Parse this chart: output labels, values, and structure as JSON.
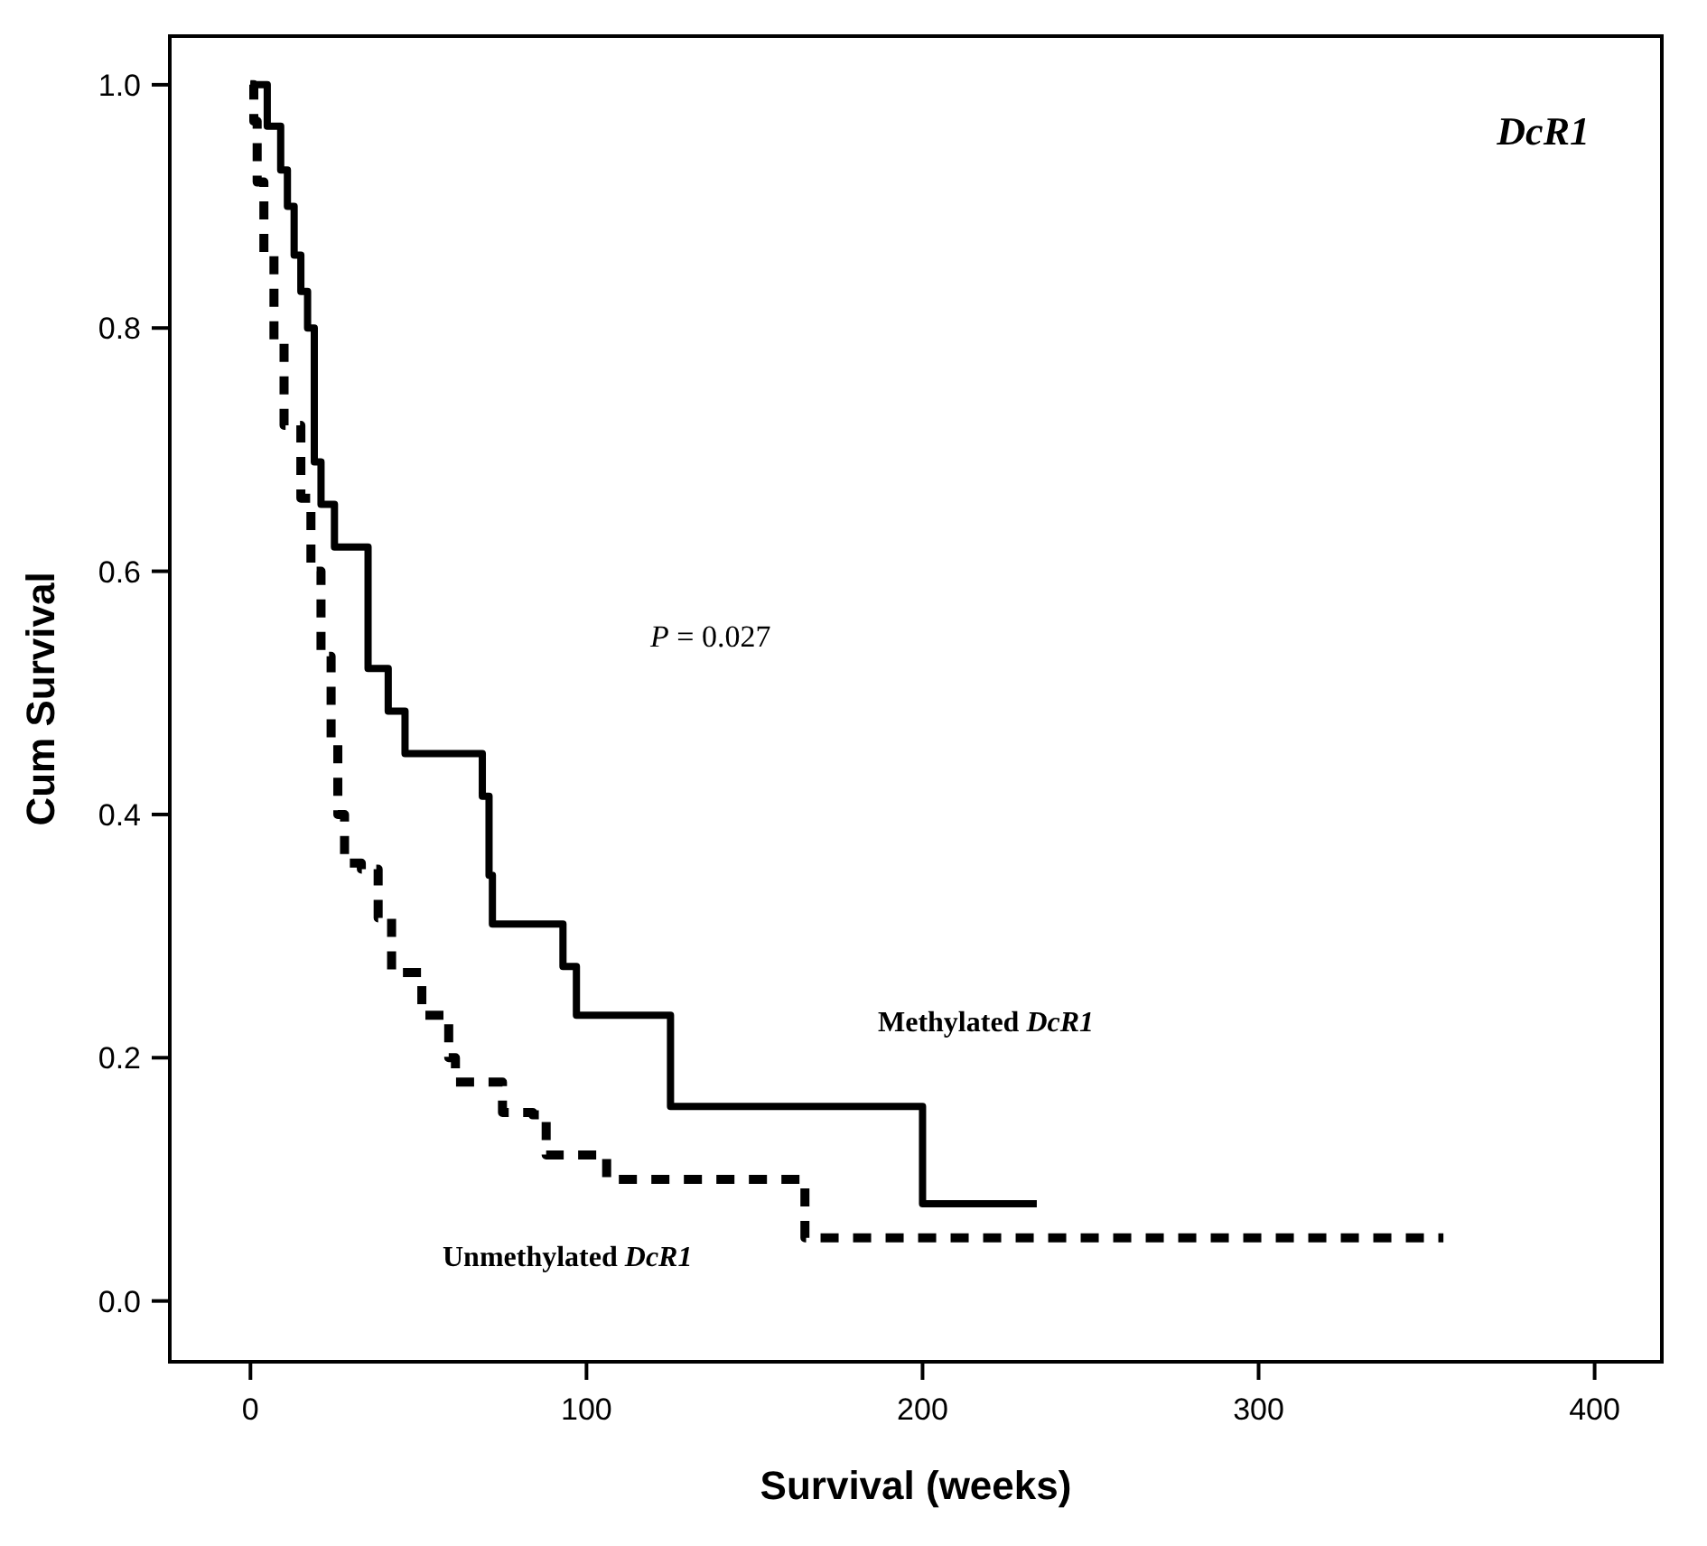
{
  "chart_data": {
    "type": "step",
    "title": "DcR1",
    "xlabel": "Survival (weeks)",
    "ylabel": "Cum Survival",
    "annotations": [
      "P = 0.027"
    ],
    "xlim": [
      -24,
      420
    ],
    "ylim": [
      -0.05,
      1.04
    ],
    "xticks": [
      0,
      100,
      200,
      300,
      400
    ],
    "yticks": [
      {
        "value": 0,
        "label": "0.0"
      },
      {
        "value": 0.2,
        "label": "0.2"
      },
      {
        "value": 0.4,
        "label": "0.4"
      },
      {
        "value": 0.6,
        "label": "0.6"
      },
      {
        "value": 0.8,
        "label": "0.8"
      },
      {
        "value": 1,
        "label": "1.0"
      }
    ],
    "grid": false,
    "series": [
      {
        "name": "Methylated DcR1",
        "color": "#000000",
        "line_style": "solid",
        "x": [
          0,
          5,
          9,
          11,
          13,
          15,
          17,
          19,
          21,
          25,
          35,
          41,
          46,
          69,
          71,
          72,
          93,
          97,
          125,
          200,
          234
        ],
        "values": [
          1,
          0.966,
          0.93,
          0.9,
          0.86,
          0.83,
          0.8,
          0.69,
          0.655,
          0.62,
          0.52,
          0.485,
          0.45,
          0.415,
          0.35,
          0.31,
          0.275,
          0.235,
          0.16,
          0.08,
          0.08
        ]
      },
      {
        "name": "Unmethylated DcR1",
        "color": "#000000",
        "line_style": "dashed",
        "x": [
          0,
          1,
          2,
          4,
          7,
          10,
          15,
          18,
          21,
          24,
          26,
          28,
          33,
          38,
          42,
          51,
          59,
          61,
          71,
          75,
          84,
          88,
          104,
          106,
          165,
          355
        ],
        "values": [
          1,
          0.97,
          0.92,
          0.86,
          0.79,
          0.72,
          0.66,
          0.6,
          0.53,
          0.46,
          0.4,
          0.36,
          0.355,
          0.315,
          0.27,
          0.235,
          0.2,
          0.18,
          0.18,
          0.155,
          0.153,
          0.12,
          0.12,
          0.1,
          0.052,
          0.052
        ]
      }
    ]
  }
}
